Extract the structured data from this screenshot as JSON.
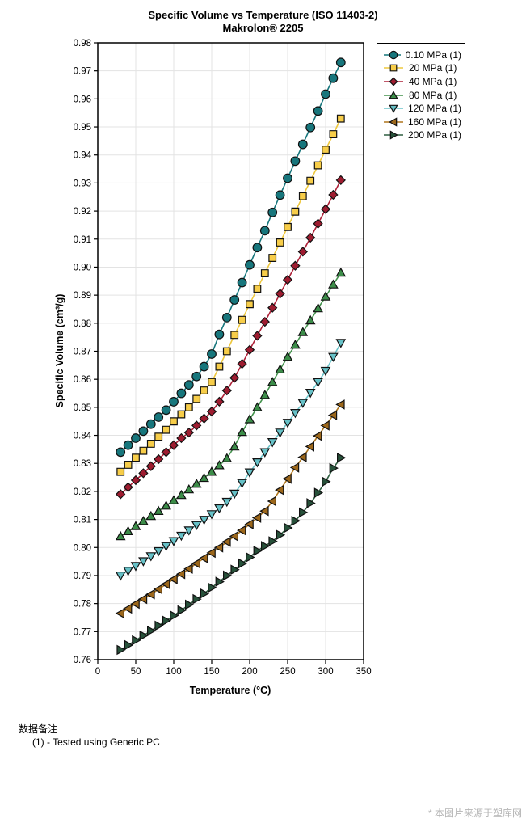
{
  "chart_data": {
    "type": "line",
    "title": "Specific Volume vs Temperature (ISO 11403-2)",
    "subtitle": "Makrolon® 2205",
    "xlabel": "Temperature (°C)",
    "ylabel": "Specific Volume (cm³/g)",
    "xlim": [
      0,
      350
    ],
    "ylim": [
      0.76,
      0.98
    ],
    "x_tick_step": 50,
    "y_tick_step": 0.01,
    "grid": true,
    "legend_position": "top-right",
    "x": [
      30,
      40,
      50,
      60,
      70,
      80,
      90,
      100,
      110,
      120,
      130,
      140,
      150,
      160,
      170,
      180,
      190,
      200,
      210,
      220,
      230,
      240,
      250,
      260,
      270,
      280,
      290,
      300,
      310,
      320
    ],
    "series": [
      {
        "name": "0.10 MPa (1)",
        "marker": "circle",
        "color": "#17767c",
        "line_color": "#17767c",
        "values": [
          0.834,
          0.8365,
          0.839,
          0.8415,
          0.844,
          0.8465,
          0.849,
          0.852,
          0.855,
          0.858,
          0.861,
          0.8645,
          0.869,
          0.876,
          0.882,
          0.8883,
          0.8945,
          0.9008,
          0.907,
          0.913,
          0.9195,
          0.9257,
          0.9317,
          0.9378,
          0.9438,
          0.9498,
          0.9557,
          0.9617,
          0.9674,
          0.973
        ]
      },
      {
        "name": "20 MPa (1)",
        "marker": "square",
        "color": "#f7cd49",
        "line_color": "#eec83e",
        "values": [
          0.827,
          0.8295,
          0.832,
          0.8345,
          0.837,
          0.8395,
          0.842,
          0.845,
          0.8475,
          0.85,
          0.853,
          0.856,
          0.859,
          0.8645,
          0.87,
          0.8758,
          0.8812,
          0.8868,
          0.8923,
          0.8978,
          0.9033,
          0.9088,
          0.9143,
          0.9198,
          0.9253,
          0.9308,
          0.9363,
          0.9419,
          0.9474,
          0.953
        ]
      },
      {
        "name": "40 MPa (1)",
        "marker": "diamond",
        "color": "#9e1c30",
        "line_color": "#ad2138",
        "values": [
          0.819,
          0.8215,
          0.824,
          0.8265,
          0.829,
          0.8315,
          0.834,
          0.8365,
          0.839,
          0.841,
          0.8435,
          0.846,
          0.8485,
          0.852,
          0.856,
          0.8605,
          0.8655,
          0.8705,
          0.8755,
          0.8805,
          0.8855,
          0.8905,
          0.8955,
          0.9005,
          0.9055,
          0.9105,
          0.9155,
          0.9207,
          0.9258,
          0.931
        ]
      },
      {
        "name": "80 MPa (1)",
        "marker": "triangle-up",
        "color": "#3c8d49",
        "line_color": "#44934d",
        "values": [
          0.804,
          0.8058,
          0.8076,
          0.8094,
          0.8112,
          0.813,
          0.8149,
          0.8168,
          0.8187,
          0.8207,
          0.8227,
          0.8248,
          0.827,
          0.8293,
          0.8318,
          0.836,
          0.8412,
          0.8457,
          0.85,
          0.8544,
          0.859,
          0.8635,
          0.868,
          0.8723,
          0.8768,
          0.881,
          0.8853,
          0.8895,
          0.8938,
          0.898
        ]
      },
      {
        "name": "120 MPa (1)",
        "marker": "triangle-down",
        "color": "#66c1c7",
        "line_color": "#6cc4ca",
        "values": [
          0.79,
          0.7917,
          0.7934,
          0.7951,
          0.7969,
          0.7987,
          0.8005,
          0.8023,
          0.8042,
          0.8061,
          0.808,
          0.8099,
          0.8119,
          0.814,
          0.8163,
          0.8192,
          0.823,
          0.8268,
          0.8304,
          0.834,
          0.8376,
          0.841,
          0.8445,
          0.848,
          0.8516,
          0.8552,
          0.859,
          0.863,
          0.868,
          0.873
        ]
      },
      {
        "name": "160 MPa (1)",
        "marker": "triangle-left",
        "color": "#9c671b",
        "line_color": "#b0771e",
        "values": [
          0.7765,
          0.7782,
          0.7799,
          0.7816,
          0.7833,
          0.7851,
          0.7869,
          0.7887,
          0.7905,
          0.7924,
          0.7943,
          0.7962,
          0.7981,
          0.8,
          0.802,
          0.804,
          0.8061,
          0.8083,
          0.8106,
          0.813,
          0.8165,
          0.8205,
          0.8245,
          0.8285,
          0.8322,
          0.836,
          0.8398,
          0.8435,
          0.8472,
          0.851
        ]
      },
      {
        "name": "200 MPa (1)",
        "marker": "triangle-right",
        "color": "#27513a",
        "line_color": "#2f5f41",
        "values": [
          0.7635,
          0.7652,
          0.7669,
          0.7686,
          0.7703,
          0.7721,
          0.7739,
          0.7757,
          0.7776,
          0.7796,
          0.7816,
          0.7836,
          0.7857,
          0.7878,
          0.79,
          0.7921,
          0.7943,
          0.7965,
          0.7988,
          0.8005,
          0.8022,
          0.8045,
          0.807,
          0.8095,
          0.8125,
          0.8158,
          0.8195,
          0.8235,
          0.8283,
          0.832
        ]
      }
    ]
  },
  "notes": {
    "header": "数据备注",
    "items": [
      "(1) - Tested using Generic PC"
    ]
  },
  "watermark": {
    "text": "* 本图片来源于塑库网"
  },
  "style": {
    "grid_color": "#e3e3e3",
    "frame_color": "#000000",
    "marker_edge_color": "#111111"
  }
}
